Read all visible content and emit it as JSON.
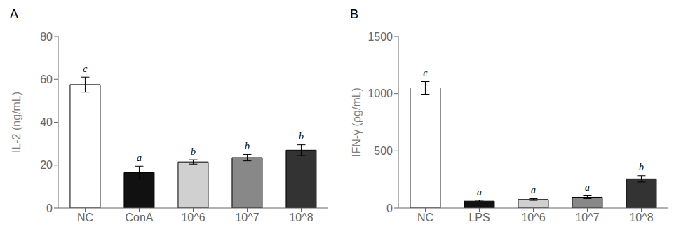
{
  "chart_data": [
    {
      "type": "bar",
      "title": "A",
      "categories": [
        "NC",
        "ConA",
        "10^6",
        "10^7",
        "10^8"
      ],
      "values": [
        57.5,
        16.5,
        21.5,
        23.5,
        27.0
      ],
      "errors": [
        3.5,
        3.0,
        1.0,
        1.5,
        2.5
      ],
      "colors": [
        "#ffffff",
        "#111111",
        "#d0d0d0",
        "#888888",
        "#333333"
      ],
      "annotations": [
        "c",
        "a",
        "b",
        "b",
        "b"
      ],
      "ylabel": "IL-2 (ng/mL)",
      "ylim": [
        0,
        80
      ],
      "yticks": [
        0,
        20,
        40,
        60,
        80
      ],
      "grid": false
    },
    {
      "type": "bar",
      "title": "B",
      "categories": [
        "NC",
        "LPS",
        "10^6",
        "10^7",
        "10^8"
      ],
      "values": [
        1050,
        60,
        75,
        95,
        255
      ],
      "errors": [
        55,
        8,
        8,
        12,
        28
      ],
      "colors": [
        "#ffffff",
        "#111111",
        "#d0d0d0",
        "#888888",
        "#333333"
      ],
      "annotations": [
        "c",
        "a",
        "a",
        "a",
        "b"
      ],
      "ylabel": "IFN-γ (ρg/mL)",
      "ylim": [
        0,
        1500
      ],
      "yticks": [
        0,
        500,
        1000,
        1500
      ],
      "grid": false
    }
  ]
}
